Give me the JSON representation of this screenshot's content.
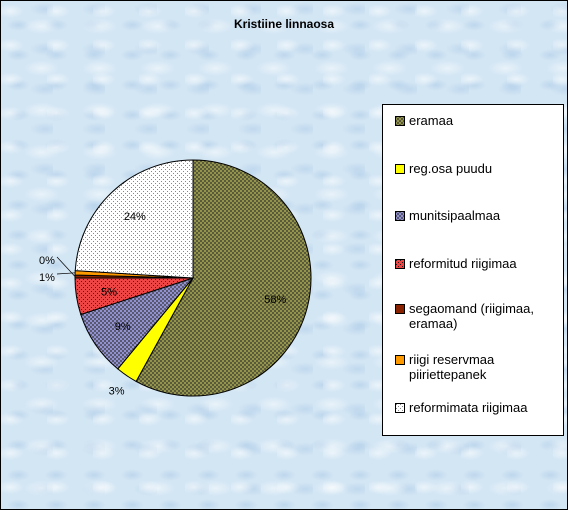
{
  "chart_data": {
    "type": "pie",
    "title": "Kristiine linnaosa",
    "legend_position": "right",
    "slices": [
      {
        "label": "eramaa",
        "value": 58,
        "data_label": "58%",
        "color": "#9c9c4c",
        "pattern": "crosshatch"
      },
      {
        "label": "reg.osa puudu",
        "value": 3,
        "data_label": "3%",
        "color": "#ffff00",
        "pattern": "solid"
      },
      {
        "label": "munitsipaalmaa",
        "value": 9,
        "data_label": "9%",
        "color": "#9999dd",
        "pattern": "crosshatch"
      },
      {
        "label": "reformitud riigimaa",
        "value": 5,
        "data_label": "5%",
        "color": "#ee4444",
        "pattern": "dots"
      },
      {
        "label": "segaomand (riigimaa, eramaa)",
        "value": 0.4,
        "data_label": "0%",
        "color": "#882200",
        "pattern": "solid"
      },
      {
        "label": "riigi reservmaa piiriettepanek",
        "value": 0.6,
        "data_label": "1%",
        "color": "#ff9900",
        "pattern": "solid"
      },
      {
        "label": "reformimata riigimaa",
        "value": 24,
        "data_label": "24%",
        "color": "#ffffff",
        "pattern": "dots"
      }
    ]
  }
}
